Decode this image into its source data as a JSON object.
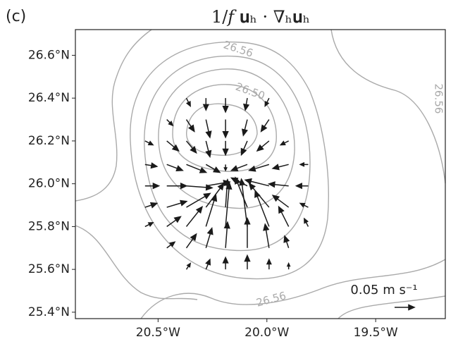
{
  "chart_data": {
    "type": "quiver",
    "panel_label": "(c)",
    "title": "1/𝑓 𝐮ₕ · ∇ₕ𝐮ₕ",
    "xlim": [
      -20.88,
      -19.18
    ],
    "ylim": [
      25.37,
      26.72
    ],
    "xticks": [
      {
        "value": -20.5,
        "label": "20.5°W"
      },
      {
        "value": -20.0,
        "label": "20.0°W"
      },
      {
        "value": -19.5,
        "label": "19.5°W"
      }
    ],
    "yticks": [
      {
        "value": 25.4,
        "label": "25.4°N"
      },
      {
        "value": 25.6,
        "label": "25.6°N"
      },
      {
        "value": 25.8,
        "label": "25.8°N"
      },
      {
        "value": 26.0,
        "label": "26.0°N"
      },
      {
        "value": 26.2,
        "label": "26.2°N"
      },
      {
        "value": 26.4,
        "label": "26.4°N"
      },
      {
        "value": 26.6,
        "label": "26.6°N"
      }
    ],
    "contour_labels": [
      "26.56",
      "26.50",
      "26.56",
      "26.56"
    ],
    "contour_color": "#aaaaaa",
    "arrow_color": "#1a1a1a",
    "quiver_key": {
      "value": 0.05,
      "label": "0.05 m s⁻¹"
    },
    "x": [
      -20.28,
      -20.19,
      -20.09,
      -20.37,
      -19.99,
      -20.46,
      -20.37,
      -20.28,
      -20.19,
      -20.09,
      -19.99,
      -20.56,
      -20.46,
      -20.37,
      -20.28,
      -20.19,
      -20.09,
      -19.99,
      -19.9,
      -20.56,
      -20.46,
      -20.37,
      -20.28,
      -20.19,
      -20.09,
      -19.99,
      -19.9,
      -19.81,
      -20.56,
      -20.46,
      -20.37,
      -20.28,
      -20.09,
      -19.99,
      -19.9,
      -19.81,
      -20.56,
      -20.46,
      -20.37,
      -20.28,
      -20.19,
      -20.09,
      -19.99,
      -19.9,
      -19.81,
      -20.56,
      -20.46,
      -20.37,
      -20.28,
      -20.19,
      -20.09,
      -19.99,
      -19.9,
      -19.81,
      -20.46,
      -20.37,
      -20.28,
      -20.19,
      -20.09,
      -19.99,
      -19.9,
      -20.37,
      -20.28,
      -20.19,
      -20.09,
      -19.99,
      -19.9
    ],
    "y": [
      26.4,
      26.4,
      26.4,
      26.4,
      26.4,
      26.3,
      26.3,
      26.3,
      26.3,
      26.3,
      26.3,
      26.2,
      26.2,
      26.2,
      26.2,
      26.2,
      26.2,
      26.2,
      26.2,
      26.09,
      26.09,
      26.09,
      26.09,
      26.09,
      26.09,
      26.09,
      26.09,
      26.09,
      25.99,
      25.99,
      25.99,
      25.99,
      25.99,
      25.99,
      25.99,
      25.99,
      25.89,
      25.89,
      25.89,
      25.89,
      25.89,
      25.89,
      25.89,
      25.89,
      25.89,
      25.8,
      25.8,
      25.8,
      25.8,
      25.8,
      25.8,
      25.8,
      25.8,
      25.8,
      25.7,
      25.7,
      25.7,
      25.7,
      25.7,
      25.7,
      25.7,
      25.6,
      25.6,
      25.6,
      25.6,
      25.6,
      25.6
    ],
    "u": [
      0,
      0,
      -0.005,
      0.01,
      -0.01,
      0.015,
      0.02,
      0.01,
      0,
      -0.01,
      -0.02,
      0.02,
      0.03,
      0.025,
      0.01,
      0,
      -0.015,
      -0.03,
      -0.02,
      0.03,
      0.04,
      0.05,
      0.035,
      0,
      -0.04,
      -0.05,
      -0.04,
      -0.02,
      0.035,
      0.05,
      0.065,
      0.06,
      -0.04,
      -0.06,
      -0.05,
      -0.03,
      0.03,
      0.05,
      0.06,
      0.045,
      0.005,
      -0.03,
      -0.05,
      -0.04,
      -0.02,
      0.02,
      0.035,
      0.04,
      0.025,
      0.01,
      -0.015,
      -0.035,
      -0.025,
      -0.01,
      0.02,
      0.025,
      0.015,
      0.005,
      0,
      -0.01,
      -0.01,
      0.01,
      0.01,
      0,
      0,
      0,
      0
    ],
    "v": [
      -0.03,
      -0.035,
      -0.03,
      -0.02,
      -0.02,
      -0.015,
      -0.03,
      -0.045,
      -0.045,
      -0.04,
      -0.03,
      -0.01,
      -0.025,
      -0.03,
      -0.04,
      -0.035,
      -0.035,
      -0.025,
      -0.01,
      -0.005,
      -0.015,
      -0.02,
      -0.02,
      -0.015,
      -0.015,
      -0.015,
      -0.01,
      0,
      0,
      0,
      -0.005,
      0.01,
      0.02,
      0.015,
      0.005,
      0,
      0.01,
      0.015,
      0.035,
      0.06,
      0.07,
      0.075,
      0.06,
      0.03,
      0.01,
      0.01,
      0.025,
      0.05,
      0.08,
      0.11,
      0.12,
      0.09,
      0.05,
      0.02,
      0.015,
      0.035,
      0.05,
      0.065,
      0.075,
      0.06,
      0.03,
      0.015,
      0.025,
      0.03,
      0.035,
      0.025,
      0.015
    ]
  }
}
